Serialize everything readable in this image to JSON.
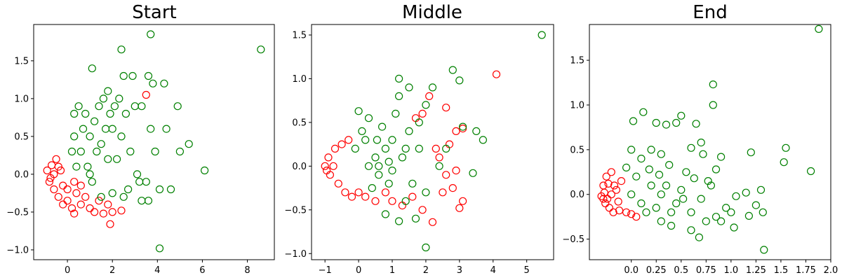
{
  "colors": {
    "red_series": "#ff0000",
    "green_series": "#008000",
    "axes": "#000000"
  },
  "chart_data": [
    {
      "type": "scatter",
      "title": "Start",
      "xlim": [
        -1.5,
        9.2
      ],
      "ylim": [
        -1.13,
        1.98
      ],
      "xticks": [
        0,
        2,
        4,
        6,
        8
      ],
      "xtick_labels": [
        "0",
        "2",
        "4",
        "6",
        "8"
      ],
      "yticks": [
        -1.0,
        -0.5,
        0.0,
        0.5,
        1.0,
        1.5
      ],
      "ytick_labels": [
        "−1.0",
        "−0.5",
        "0.0",
        "0.5",
        "1.0",
        "1.5"
      ],
      "marker": "hollow-circle",
      "grid": false,
      "series": [
        {
          "color": "red",
          "points": [
            [
              -0.9,
              0.05
            ],
            [
              -0.8,
              -0.1
            ],
            [
              -0.7,
              0.12
            ],
            [
              -0.6,
              -0.2
            ],
            [
              -0.5,
              0.2
            ],
            [
              -0.4,
              -0.3
            ],
            [
              -0.3,
              0.05
            ],
            [
              -0.2,
              -0.4
            ],
            [
              0.0,
              -0.35
            ],
            [
              0.2,
              -0.45
            ],
            [
              0.4,
              -0.25
            ],
            [
              0.6,
              -0.4
            ],
            [
              0.8,
              -0.3
            ],
            [
              1.0,
              -0.45
            ],
            [
              1.2,
              -0.5
            ],
            [
              1.4,
              -0.35
            ],
            [
              1.6,
              -0.52
            ],
            [
              1.8,
              -0.4
            ],
            [
              2.0,
              -0.5
            ],
            [
              2.4,
              -0.48
            ],
            [
              0.3,
              -0.52
            ],
            [
              1.9,
              -0.66
            ],
            [
              3.5,
              1.05
            ],
            [
              -0.6,
              0.0
            ],
            [
              -0.4,
              0.1
            ],
            [
              -0.2,
              -0.15
            ],
            [
              0.0,
              -0.2
            ],
            [
              0.3,
              -0.1
            ],
            [
              0.6,
              -0.15
            ],
            [
              -0.75,
              -0.05
            ]
          ]
        },
        {
          "color": "green",
          "points": [
            [
              1.0,
              0.5
            ],
            [
              1.5,
              0.4
            ],
            [
              1.2,
              0.7
            ],
            [
              0.6,
              0.3
            ],
            [
              2.0,
              0.6
            ],
            [
              1.8,
              0.2
            ],
            [
              0.8,
              0.8
            ],
            [
              1.4,
              0.9
            ],
            [
              2.4,
              0.5
            ],
            [
              0.3,
              0.5
            ],
            [
              2.6,
              0.8
            ],
            [
              1.6,
              1.0
            ],
            [
              0.9,
              0.1
            ],
            [
              2.2,
              0.2
            ],
            [
              1.1,
              -0.1
            ],
            [
              0.4,
              0.1
            ],
            [
              1.7,
              0.6
            ],
            [
              2.8,
              0.3
            ],
            [
              0.7,
              0.6
            ],
            [
              1.3,
              0.3
            ],
            [
              2.9,
              1.3
            ],
            [
              2.5,
              1.3
            ],
            [
              1.1,
              1.4
            ],
            [
              2.3,
              1.0
            ],
            [
              3.0,
              0.9
            ],
            [
              3.3,
              0.9
            ],
            [
              3.6,
              1.3
            ],
            [
              3.8,
              1.2
            ],
            [
              4.3,
              1.2
            ],
            [
              4.9,
              0.9
            ],
            [
              3.1,
              0.0
            ],
            [
              3.5,
              -0.1
            ],
            [
              4.1,
              -0.2
            ],
            [
              4.6,
              -0.2
            ],
            [
              5.0,
              0.3
            ],
            [
              5.4,
              0.4
            ],
            [
              6.1,
              0.05
            ],
            [
              4.4,
              0.6
            ],
            [
              3.7,
              0.6
            ],
            [
              3.9,
              0.3
            ],
            [
              2.7,
              -0.2
            ],
            [
              3.2,
              -0.1
            ],
            [
              2.5,
              -0.3
            ],
            [
              3.3,
              -0.35
            ],
            [
              3.6,
              -0.35
            ],
            [
              2.0,
              -0.25
            ],
            [
              1.5,
              -0.3
            ],
            [
              3.7,
              1.85
            ],
            [
              8.6,
              1.65
            ],
            [
              4.1,
              -0.98
            ],
            [
              2.4,
              1.65
            ],
            [
              1.9,
              0.8
            ],
            [
              1.0,
              0.0
            ],
            [
              0.5,
              0.9
            ],
            [
              1.8,
              1.1
            ],
            [
              2.1,
              0.9
            ],
            [
              0.2,
              0.3
            ],
            [
              0.3,
              0.8
            ]
          ]
        }
      ]
    },
    {
      "type": "scatter",
      "title": "Middle",
      "xlim": [
        -1.4,
        5.8
      ],
      "ylim": [
        -1.07,
        1.62
      ],
      "xticks": [
        -1,
        0,
        1,
        2,
        3,
        4,
        5
      ],
      "xtick_labels": [
        "−1",
        "0",
        "1",
        "2",
        "3",
        "4",
        "5"
      ],
      "yticks": [
        -1.0,
        -0.5,
        0.0,
        0.5,
        1.0,
        1.5
      ],
      "ytick_labels": [
        "−1.0",
        "−0.5",
        "0.0",
        "0.5",
        "1.0",
        "1.5"
      ],
      "marker": "hollow-circle",
      "grid": false,
      "series": [
        {
          "color": "red",
          "points": [
            [
              -1.0,
              0.0
            ],
            [
              -0.9,
              0.1
            ],
            [
              -0.85,
              -0.1
            ],
            [
              -0.7,
              0.2
            ],
            [
              -0.6,
              -0.2
            ],
            [
              -0.5,
              0.25
            ],
            [
              -0.4,
              -0.3
            ],
            [
              -0.3,
              0.3
            ],
            [
              -0.2,
              -0.35
            ],
            [
              0.0,
              -0.3
            ],
            [
              0.2,
              -0.35
            ],
            [
              0.5,
              -0.4
            ],
            [
              0.8,
              -0.3
            ],
            [
              1.0,
              -0.4
            ],
            [
              1.3,
              -0.45
            ],
            [
              1.6,
              -0.35
            ],
            [
              1.9,
              -0.5
            ],
            [
              2.2,
              -0.64
            ],
            [
              2.5,
              -0.3
            ],
            [
              2.8,
              -0.25
            ],
            [
              3.1,
              -0.4
            ],
            [
              3.0,
              -0.48
            ],
            [
              2.6,
              -0.1
            ],
            [
              2.4,
              0.1
            ],
            [
              2.3,
              0.2
            ],
            [
              2.7,
              0.25
            ],
            [
              2.9,
              0.4
            ],
            [
              3.1,
              0.43
            ],
            [
              2.6,
              0.67
            ],
            [
              2.9,
              -0.05
            ],
            [
              4.1,
              1.05
            ],
            [
              1.9,
              0.6
            ],
            [
              2.1,
              0.8
            ],
            [
              1.7,
              0.55
            ],
            [
              -0.95,
              -0.05
            ],
            [
              -0.75,
              0.0
            ]
          ]
        },
        {
          "color": "green",
          "points": [
            [
              0.5,
              0.1
            ],
            [
              0.8,
              0.2
            ],
            [
              0.3,
              0.0
            ],
            [
              0.6,
              -0.1
            ],
            [
              1.0,
              0.3
            ],
            [
              0.2,
              0.3
            ],
            [
              0.9,
              -0.2
            ],
            [
              1.3,
              0.1
            ],
            [
              0.7,
              0.45
            ],
            [
              0.4,
              -0.25
            ],
            [
              1.5,
              0.4
            ],
            [
              1.1,
              0.6
            ],
            [
              1.6,
              -0.2
            ],
            [
              1.8,
              0.2
            ],
            [
              0.1,
              0.4
            ],
            [
              -0.1,
              0.2
            ],
            [
              1.2,
              0.8
            ],
            [
              1.5,
              0.9
            ],
            [
              1.8,
              0.5
            ],
            [
              2.0,
              0.7
            ],
            [
              2.2,
              0.9
            ],
            [
              1.2,
              1.0
            ],
            [
              2.8,
              1.1
            ],
            [
              3.0,
              0.98
            ],
            [
              3.5,
              0.4
            ],
            [
              3.7,
              0.3
            ],
            [
              3.1,
              0.45
            ],
            [
              3.4,
              -0.08
            ],
            [
              2.4,
              0.0
            ],
            [
              2.0,
              -0.3
            ],
            [
              1.4,
              -0.4
            ],
            [
              0.8,
              -0.55
            ],
            [
              1.2,
              -0.63
            ],
            [
              1.7,
              -0.6
            ],
            [
              2.0,
              -0.93
            ],
            [
              5.45,
              1.5
            ],
            [
              2.6,
              0.2
            ],
            [
              0.0,
              0.63
            ],
            [
              0.3,
              0.55
            ],
            [
              0.6,
              0.0
            ],
            [
              1.0,
              -0.05
            ],
            [
              0.55,
              0.3
            ],
            [
              1.4,
              0.2
            ],
            [
              0.9,
              0.05
            ]
          ]
        }
      ]
    },
    {
      "type": "scatter",
      "title": "End",
      "xlim": [
        -0.42,
        2.0
      ],
      "ylim": [
        -0.73,
        1.9
      ],
      "xticks": [
        0.0,
        0.25,
        0.5,
        0.75,
        1.0,
        1.25,
        1.5,
        1.75,
        2.0
      ],
      "xtick_labels": [
        "0.0",
        "0.25",
        "0.5",
        "0.75",
        "1.0",
        "1.25",
        "1.5",
        "1.75",
        "2.0"
      ],
      "yticks": [
        -0.5,
        0.0,
        0.5,
        1.0,
        1.5
      ],
      "ytick_labels": [
        "−0.5",
        "0.0",
        "0.5",
        "1.0",
        "1.5"
      ],
      "marker": "hollow-circle",
      "grid": false,
      "series": [
        {
          "color": "red",
          "points": [
            [
              -0.3,
              -0.02
            ],
            [
              -0.28,
              0.1
            ],
            [
              -0.26,
              -0.1
            ],
            [
              -0.25,
              0.2
            ],
            [
              -0.22,
              -0.15
            ],
            [
              -0.2,
              0.25
            ],
            [
              -0.18,
              -0.2
            ],
            [
              -0.15,
              0.05
            ],
            [
              -0.12,
              -0.18
            ],
            [
              -0.1,
              0.15
            ],
            [
              -0.05,
              -0.2
            ],
            [
              0.0,
              -0.22
            ],
            [
              0.05,
              -0.25
            ],
            [
              -0.27,
              0.02
            ],
            [
              -0.24,
              -0.05
            ],
            [
              -0.2,
              0.0
            ],
            [
              -0.17,
              0.1
            ],
            [
              -0.13,
              -0.08
            ],
            [
              -0.28,
              -0.05
            ],
            [
              -0.23,
              0.12
            ]
          ]
        },
        {
          "color": "green",
          "points": [
            [
              0.0,
              0.0
            ],
            [
              0.1,
              -0.1
            ],
            [
              0.2,
              0.1
            ],
            [
              0.15,
              -0.2
            ],
            [
              0.3,
              0.0
            ],
            [
              0.05,
              0.2
            ],
            [
              0.25,
              -0.15
            ],
            [
              0.35,
              0.1
            ],
            [
              0.4,
              -0.2
            ],
            [
              -0.05,
              0.3
            ],
            [
              0.1,
              0.4
            ],
            [
              0.2,
              0.5
            ],
            [
              0.3,
              0.45
            ],
            [
              0.45,
              -0.1
            ],
            [
              0.5,
              0.05
            ],
            [
              0.6,
              -0.2
            ],
            [
              0.7,
              -0.05
            ],
            [
              0.55,
              0.25
            ],
            [
              0.0,
              0.5
            ],
            [
              0.02,
              0.82
            ],
            [
              0.12,
              0.92
            ],
            [
              0.25,
              0.8
            ],
            [
              0.35,
              0.78
            ],
            [
              0.45,
              0.8
            ],
            [
              0.5,
              0.88
            ],
            [
              0.6,
              0.52
            ],
            [
              0.72,
              0.45
            ],
            [
              0.7,
              0.58
            ],
            [
              0.65,
              0.79
            ],
            [
              0.8,
              0.1
            ],
            [
              0.82,
              1.0
            ],
            [
              0.82,
              1.23
            ],
            [
              0.9,
              0.42
            ],
            [
              0.95,
              -0.15
            ],
            [
              1.0,
              -0.2
            ],
            [
              1.03,
              -0.37
            ],
            [
              1.05,
              -0.02
            ],
            [
              1.15,
              0.02
            ],
            [
              1.2,
              0.47
            ],
            [
              1.25,
              -0.12
            ],
            [
              1.3,
              0.05
            ],
            [
              1.32,
              -0.2
            ],
            [
              1.33,
              -0.62
            ],
            [
              1.55,
              0.52
            ],
            [
              1.53,
              0.36
            ],
            [
              1.8,
              0.26
            ],
            [
              1.88,
              1.85
            ],
            [
              0.75,
              -0.3
            ],
            [
              0.85,
              -0.25
            ],
            [
              0.6,
              -0.4
            ],
            [
              0.9,
              -0.3
            ],
            [
              0.4,
              -0.35
            ],
            [
              0.3,
              -0.3
            ],
            [
              0.68,
              -0.48
            ],
            [
              1.18,
              -0.24
            ],
            [
              0.52,
              -0.05
            ],
            [
              0.38,
              0.33
            ],
            [
              0.63,
              0.18
            ],
            [
              0.77,
              0.15
            ],
            [
              0.85,
              0.28
            ],
            [
              0.18,
              0.28
            ],
            [
              0.28,
              0.22
            ]
          ]
        }
      ]
    }
  ]
}
